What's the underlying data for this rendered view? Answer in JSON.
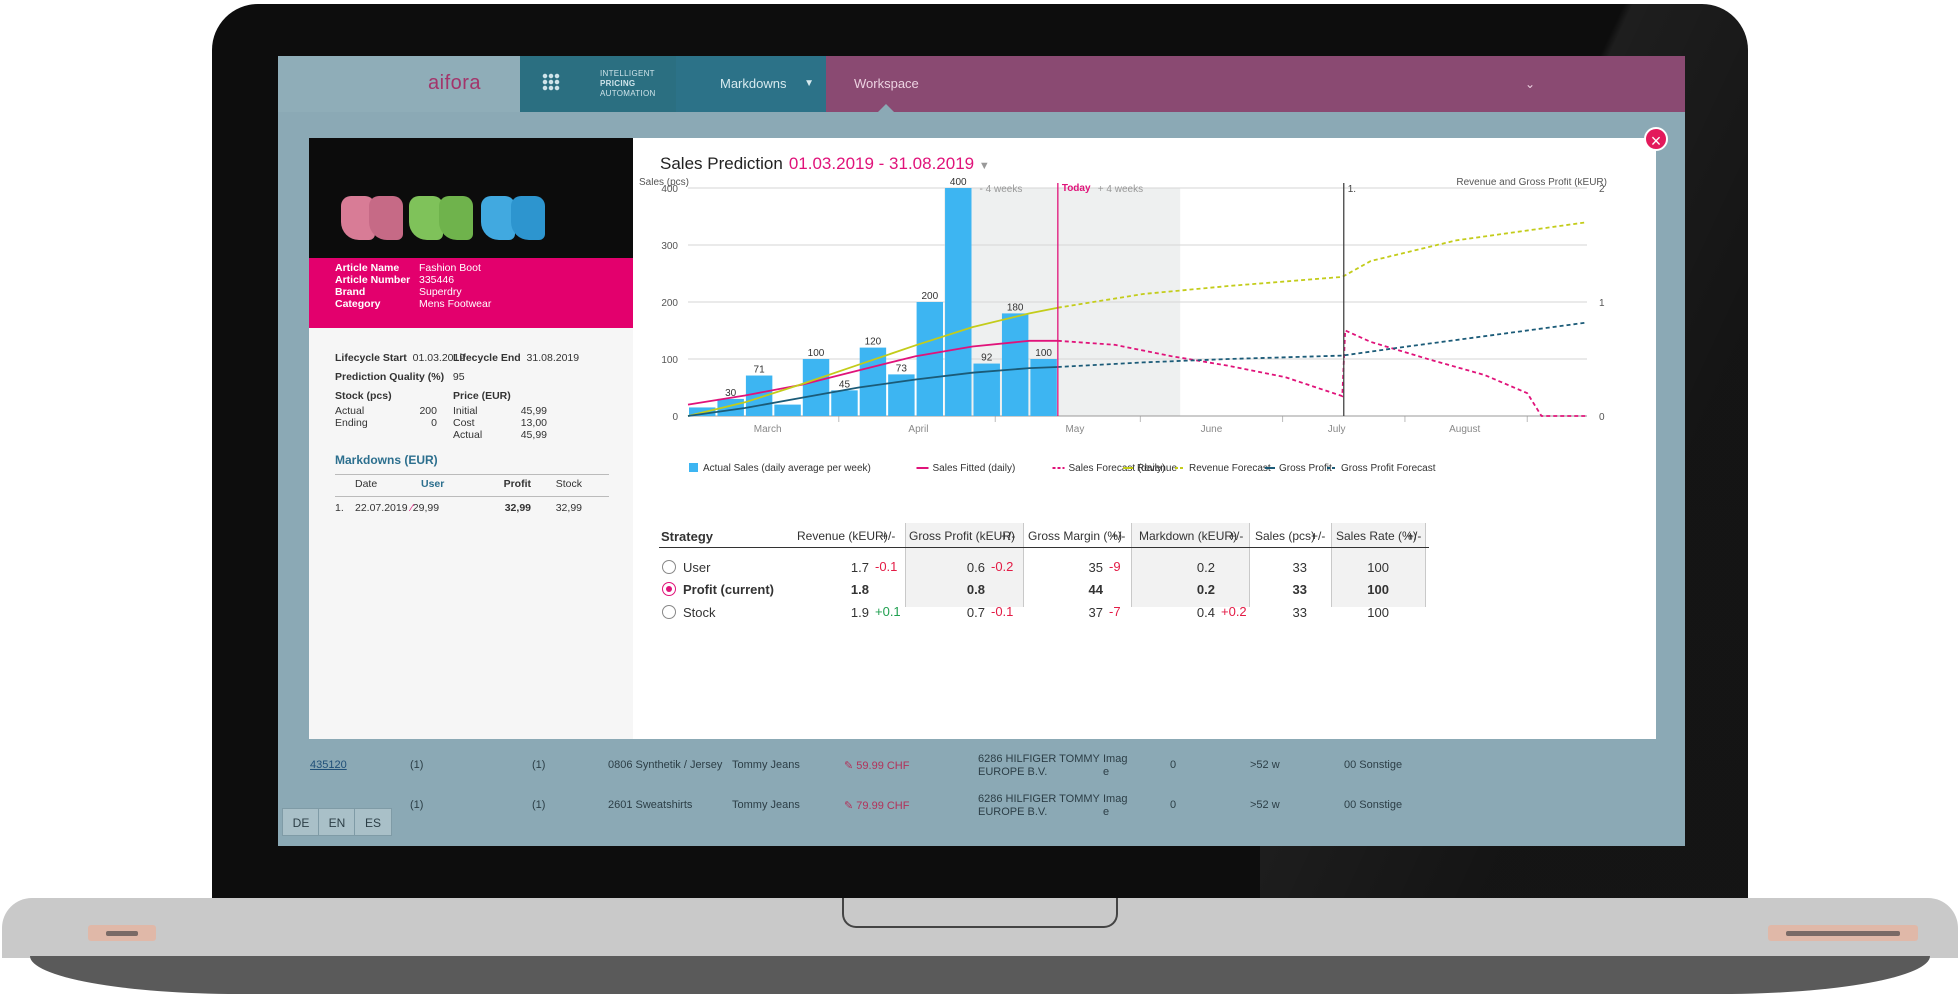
{
  "app": {
    "logo": "aifora",
    "module_lines": [
      "INTELLIGENT",
      "PRICING",
      "AUTOMATION"
    ],
    "menu_markdowns": "Markdowns",
    "menu_workspace": "Workspace",
    "languages": [
      "DE",
      "EN",
      "ES"
    ]
  },
  "background_rows": [
    {
      "id": "435120",
      "c1": "(1)",
      "c2": "(1)",
      "category": "0806 Synthetik / Jersey",
      "brand": "Tommy Jeans",
      "price": "59.99 CHF",
      "supplier_1": "6286 HILFIGER TOMMY",
      "supplier_2": "EUROPE B.V.",
      "img_1": "Imag",
      "img_2": "e",
      "zero": "0",
      "weeks": ">52 w",
      "misc": "00 Sonstige"
    },
    {
      "id": "",
      "c1": "(1)",
      "c2": "(1)",
      "category": "2601 Sweatshirts",
      "brand": "Tommy Jeans",
      "price": "79.99 CHF",
      "supplier_1": "6286 HILFIGER TOMMY",
      "supplier_2": "EUROPE B.V.",
      "img_1": "Imag",
      "img_2": "e",
      "zero": "0",
      "weeks": ">52 w",
      "misc": "00 Sonstige"
    }
  ],
  "article": {
    "fields": [
      {
        "key": "Article Name",
        "value": "Fashion Boot"
      },
      {
        "key": "Article Number",
        "value": "335446"
      },
      {
        "key": "Brand",
        "value": "Superdry"
      },
      {
        "key": "Category",
        "value": "Mens Footwear"
      }
    ],
    "lifecycle_start_label": "Lifecycle Start",
    "lifecycle_start": "01.03.2019",
    "lifecycle_end_label": "Lifecycle End",
    "lifecycle_end": "31.08.2019",
    "prediction_quality_label": "Prediction Quality (%)",
    "prediction_quality": "95",
    "stock_label": "Stock (pcs)",
    "stock": [
      {
        "key": "Actual",
        "value": "200"
      },
      {
        "key": "Ending",
        "value": "0"
      }
    ],
    "price_label": "Price (EUR)",
    "price": [
      {
        "key": "Initial",
        "value": "45,99"
      },
      {
        "key": "Cost",
        "value": "13,00"
      },
      {
        "key": "Actual",
        "value": "45,99"
      }
    ]
  },
  "markdowns": {
    "title": "Markdowns (EUR)",
    "headers": [
      "Date",
      "User",
      "Profit",
      "Stock"
    ],
    "rows": [
      {
        "index": "1.",
        "date": "22.07.2019",
        "user": "29,99",
        "profit": "32,99",
        "stock": "32,99"
      }
    ]
  },
  "prediction": {
    "title": "Sales Prediction",
    "range": "01.03.2019 - 31.08.2019"
  },
  "chart_data": {
    "type": "bar+line",
    "left_axis_label": "Sales (pcs)",
    "right_axis_label": "Revenue and Gross Profit (kEUR)",
    "y_left": [
      0,
      400
    ],
    "y_right": [
      0,
      2
    ],
    "y_ticks_left": [
      "0",
      "100",
      "200",
      "300",
      "400"
    ],
    "y_ticks_right": [
      "0",
      "1",
      "2"
    ],
    "x_labels": [
      "March",
      "April",
      "May",
      "June",
      "July",
      "August"
    ],
    "weekly_sales": [
      {
        "week": 1,
        "value": 15,
        "label": ""
      },
      {
        "week": 2,
        "value": 30,
        "label": "30"
      },
      {
        "week": 3,
        "value": 71,
        "label": "71"
      },
      {
        "week": 4,
        "value": 20,
        "label": ""
      },
      {
        "week": 5,
        "value": 100,
        "label": "100"
      },
      {
        "week": 6,
        "value": 45,
        "label": "45"
      },
      {
        "week": 7,
        "value": 120,
        "label": "120"
      },
      {
        "week": 8,
        "value": 73,
        "label": "73"
      },
      {
        "week": 9,
        "value": 200,
        "label": "200"
      },
      {
        "week": 10,
        "value": 400,
        "label": "400"
      },
      {
        "week": 11,
        "value": 92,
        "label": "92"
      },
      {
        "week": 12,
        "value": 180,
        "label": "180"
      },
      {
        "week": 13,
        "value": 100,
        "label": "100"
      }
    ],
    "markers": {
      "minus_weeks": "- 4 weeks",
      "plus_weeks": "+ 4 weeks",
      "today": "Today",
      "markdown": "1."
    },
    "series": [
      {
        "name": "Sales Fitted (daily)",
        "axis": "left",
        "style": "solid",
        "color": "#e0137a",
        "points": [
          [
            0,
            20
          ],
          [
            2,
            36
          ],
          [
            4,
            55
          ],
          [
            6,
            80
          ],
          [
            8,
            105
          ],
          [
            10,
            122
          ],
          [
            12,
            132
          ],
          [
            13,
            132
          ]
        ]
      },
      {
        "name": "Sales Forecast (daily)",
        "axis": "left",
        "style": "dashed",
        "color": "#e0137a",
        "points": [
          [
            13,
            132
          ],
          [
            15,
            125
          ],
          [
            17,
            105
          ],
          [
            19,
            88
          ],
          [
            21,
            68
          ],
          [
            23,
            35
          ],
          [
            23.1,
            150
          ],
          [
            24,
            130
          ],
          [
            26,
            100
          ],
          [
            28,
            72
          ],
          [
            29.5,
            40
          ],
          [
            30,
            0
          ],
          [
            31.6,
            0
          ]
        ]
      },
      {
        "name": "Revenue",
        "axis": "right",
        "style": "solid",
        "color": "#c3cc1a",
        "points": [
          [
            0,
            0
          ],
          [
            2,
            0.12
          ],
          [
            4,
            0.28
          ],
          [
            6,
            0.45
          ],
          [
            8,
            0.62
          ],
          [
            10,
            0.78
          ],
          [
            12,
            0.9
          ],
          [
            13,
            0.95
          ]
        ]
      },
      {
        "name": "Revenue Forecast",
        "axis": "right",
        "style": "dashed",
        "color": "#c3cc1a",
        "points": [
          [
            13,
            0.95
          ],
          [
            16,
            1.07
          ],
          [
            19,
            1.14
          ],
          [
            23,
            1.22
          ],
          [
            24,
            1.36
          ],
          [
            27,
            1.54
          ],
          [
            31.6,
            1.7
          ]
        ]
      },
      {
        "name": "Gross Profit",
        "axis": "right",
        "style": "solid",
        "color": "#1b5b78",
        "points": [
          [
            0,
            0
          ],
          [
            2,
            0.07
          ],
          [
            4,
            0.16
          ],
          [
            6,
            0.25
          ],
          [
            8,
            0.32
          ],
          [
            10,
            0.38
          ],
          [
            12,
            0.42
          ],
          [
            13,
            0.43
          ]
        ]
      },
      {
        "name": "Gross Profit Forecast",
        "axis": "right",
        "style": "dashed",
        "color": "#1b5b78",
        "points": [
          [
            13,
            0.43
          ],
          [
            16,
            0.47
          ],
          [
            19,
            0.5
          ],
          [
            23,
            0.53
          ],
          [
            25,
            0.6
          ],
          [
            28,
            0.7
          ],
          [
            31.6,
            0.82
          ]
        ]
      }
    ],
    "legend": [
      "Actual Sales (daily average per week)",
      "Sales Fitted (daily)",
      "Sales Forecast (daily)",
      "Revenue",
      "Revenue Forecast",
      "Gross Profit",
      "Gross Profit Forecast"
    ]
  },
  "strategy": {
    "headers": {
      "strategy": "Strategy",
      "revenue": "Revenue (kEUR)",
      "gross_profit": "Gross Profit (kEUR)",
      "gross_margin": "Gross Margin (%)",
      "markdown": "Markdown (kEUR)",
      "sales": "Sales (pcs)",
      "sales_rate": "Sales Rate (%)",
      "delta": "+/-"
    },
    "rows": [
      {
        "name": "User",
        "selected": false,
        "revenue": "1.7",
        "revenue_delta": "-0.1",
        "gross_profit": "0.6",
        "gross_profit_delta": "-0.2",
        "gross_margin": "35",
        "gross_margin_delta": "-9",
        "markdown": "0.2",
        "markdown_delta": "",
        "sales": "33",
        "sales_delta": "",
        "sales_rate": "100",
        "sales_rate_delta": ""
      },
      {
        "name": "Profit (current)",
        "selected": true,
        "revenue": "1.8",
        "revenue_delta": "",
        "gross_profit": "0.8",
        "gross_profit_delta": "",
        "gross_margin": "44",
        "gross_margin_delta": "",
        "markdown": "0.2",
        "markdown_delta": "",
        "sales": "33",
        "sales_delta": "",
        "sales_rate": "100",
        "sales_rate_delta": ""
      },
      {
        "name": "Stock",
        "selected": false,
        "revenue": "1.9",
        "revenue_delta": "+0.1",
        "gross_profit": "0.7",
        "gross_profit_delta": "-0.1",
        "gross_margin": "37",
        "gross_margin_delta": "-7",
        "markdown": "0.4",
        "markdown_delta": "+0.2",
        "sales": "33",
        "sales_delta": "",
        "sales_rate": "100",
        "sales_rate_delta": ""
      }
    ]
  },
  "colors": {
    "brand_pink": "#e0137a",
    "accent_teal": "#2c7288",
    "workspace_purple": "#8a4a72",
    "bar_blue": "#3db5f2",
    "revenue_green": "#c3cc1a",
    "profit_navy": "#1b5b78"
  }
}
